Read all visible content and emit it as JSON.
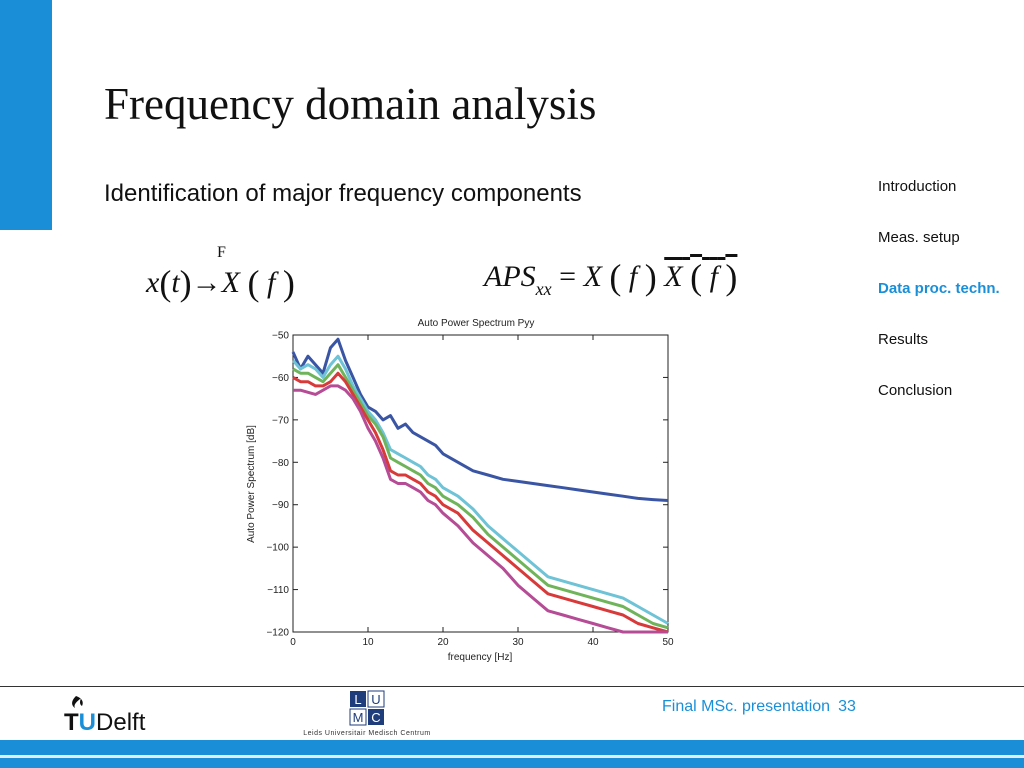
{
  "slide": {
    "title": "Frequency domain analysis",
    "subtitle": "Identification of major frequency components"
  },
  "equations": {
    "eq1_label": "F",
    "eq1_x": "x",
    "eq1_t": "t",
    "eq1_arrow": "→",
    "eq1_X": "X",
    "eq1_f": "f",
    "eq2_lhs": "APS",
    "eq2_sub": "xx",
    "eq2_eq": "=",
    "eq2_X": "X",
    "eq2_f": "f"
  },
  "nav": {
    "items": [
      "Introduction",
      "Meas. setup",
      "Data proc. techn.",
      "Results",
      "Conclusion"
    ],
    "active_index": 2
  },
  "footer": {
    "presentation": "Final MSc. presentation",
    "page_number": "33",
    "tud_logo": "TUDelft",
    "lumc_logo_lines": [
      "L",
      "U",
      "M",
      "C"
    ],
    "lumc_caption": "Leids Universitair Medisch Centrum"
  },
  "colors": {
    "accent": "#1a8fd8",
    "series_blue": "#3a55a4",
    "series_cyan": "#6ec3d6",
    "series_green": "#6fb45a",
    "series_red": "#d83a3a",
    "series_magenta": "#b54c95"
  },
  "chart_data": {
    "type": "line",
    "title": "Auto Power Spectrum Pyy",
    "xlabel": "frequency [Hz]",
    "ylabel": "Auto Power Spectrum [dB]",
    "xlim": [
      0,
      50
    ],
    "ylim": [
      -120,
      -50
    ],
    "xticks": [
      0,
      10,
      20,
      30,
      40,
      50
    ],
    "yticks": [
      -120,
      -110,
      -100,
      -90,
      -80,
      -70,
      -60,
      -50
    ],
    "grid": false,
    "legend": "none",
    "series": [
      {
        "color": "#3a55a4",
        "x": [
          0,
          1,
          2,
          3,
          4,
          5,
          6,
          7,
          8,
          9,
          10,
          11,
          12,
          13,
          14,
          15,
          16,
          17,
          18,
          19,
          20,
          22,
          24,
          26,
          28,
          30,
          32,
          34,
          36,
          38,
          40,
          42,
          44,
          46,
          48,
          50
        ],
        "y": [
          -54,
          -58,
          -55,
          -57,
          -59,
          -53,
          -51,
          -56,
          -60,
          -64,
          -67,
          -68,
          -70,
          -69,
          -72,
          -71,
          -73,
          -74,
          -75,
          -76,
          -78,
          -80,
          -82,
          -83,
          -84,
          -84.5,
          -85,
          -85.5,
          -86,
          -86.5,
          -87,
          -87.5,
          -88,
          -88.5,
          -88.8,
          -89
        ]
      },
      {
        "color": "#6ec3d6",
        "x": [
          0,
          1,
          2,
          3,
          4,
          5,
          6,
          7,
          8,
          9,
          10,
          11,
          12,
          13,
          14,
          15,
          16,
          17,
          18,
          19,
          20,
          22,
          24,
          26,
          28,
          30,
          32,
          34,
          36,
          38,
          40,
          42,
          44,
          46,
          48,
          50
        ],
        "y": [
          -56,
          -58,
          -57,
          -58,
          -60,
          -57,
          -55,
          -58,
          -62,
          -65,
          -68,
          -70,
          -73,
          -77,
          -78,
          -79,
          -80,
          -81,
          -83,
          -84,
          -86,
          -88,
          -91,
          -95,
          -98,
          -101,
          -104,
          -107,
          -108,
          -109,
          -110,
          -111,
          -112,
          -114,
          -116,
          -118
        ]
      },
      {
        "color": "#6fb45a",
        "x": [
          0,
          1,
          2,
          3,
          4,
          5,
          6,
          7,
          8,
          9,
          10,
          11,
          12,
          13,
          14,
          15,
          16,
          17,
          18,
          19,
          20,
          22,
          24,
          26,
          28,
          30,
          32,
          34,
          36,
          38,
          40,
          42,
          44,
          46,
          48,
          50
        ],
        "y": [
          -58,
          -59,
          -59,
          -60,
          -61,
          -59,
          -57,
          -60,
          -63,
          -66,
          -69,
          -71,
          -74,
          -79,
          -80,
          -81,
          -82,
          -83,
          -85,
          -86,
          -88,
          -90,
          -93,
          -97,
          -100,
          -103,
          -106,
          -109,
          -110,
          -111,
          -112,
          -113,
          -114,
          -116,
          -118,
          -119
        ]
      },
      {
        "color": "#d83a3a",
        "x": [
          0,
          1,
          2,
          3,
          4,
          5,
          6,
          7,
          8,
          9,
          10,
          11,
          12,
          13,
          14,
          15,
          16,
          17,
          18,
          19,
          20,
          22,
          24,
          26,
          28,
          30,
          32,
          34,
          36,
          38,
          40,
          42,
          44,
          46,
          48,
          50
        ],
        "y": [
          -60,
          -61,
          -61,
          -62,
          -62,
          -61,
          -59,
          -61,
          -64,
          -67,
          -70,
          -73,
          -77,
          -82,
          -83,
          -83,
          -84,
          -85,
          -87,
          -88,
          -90,
          -92,
          -96,
          -99,
          -102,
          -105,
          -108,
          -111,
          -112,
          -113,
          -114,
          -115,
          -116,
          -118,
          -119,
          -120
        ]
      },
      {
        "color": "#b54c95",
        "x": [
          0,
          1,
          2,
          3,
          4,
          5,
          6,
          7,
          8,
          9,
          10,
          11,
          12,
          13,
          14,
          15,
          16,
          17,
          18,
          19,
          20,
          22,
          24,
          26,
          28,
          30,
          32,
          34,
          36,
          38,
          40,
          42,
          44,
          46,
          48,
          50
        ],
        "y": [
          -63,
          -63,
          -63.5,
          -64,
          -63,
          -62,
          -62,
          -63,
          -65,
          -68,
          -72,
          -75,
          -79,
          -84,
          -85,
          -85,
          -86,
          -87,
          -89,
          -90,
          -92,
          -95,
          -99,
          -102,
          -105,
          -109,
          -112,
          -115,
          -116,
          -117,
          -118,
          -119,
          -120,
          -121,
          -121,
          -122
        ]
      }
    ]
  }
}
